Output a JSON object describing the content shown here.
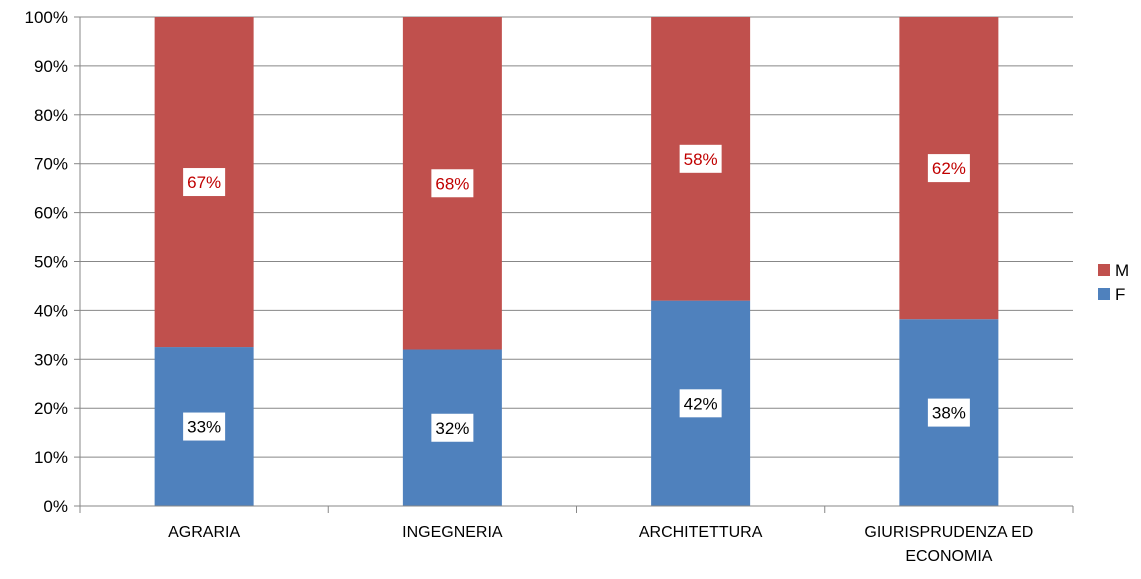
{
  "chart_data": {
    "type": "bar",
    "stacked": true,
    "percent": true,
    "categories": [
      [
        "AGRARIA"
      ],
      [
        "INGEGNERIA"
      ],
      [
        "ARCHITETTURA"
      ],
      [
        "GIURISPRUDENZA ED",
        "ECONOMIA"
      ]
    ],
    "series": [
      {
        "name": "F",
        "color": "#4f81bd",
        "values": [
          32.5,
          32,
          42,
          38.2
        ],
        "labels": [
          "33%",
          "32%",
          "42%",
          "38%"
        ]
      },
      {
        "name": "M",
        "color": "#c0504d",
        "values": [
          67.5,
          68,
          58,
          61.8
        ],
        "labels": [
          "67%",
          "68%",
          "58%",
          "62%"
        ]
      }
    ],
    "title": "",
    "xlabel": "",
    "ylabel": "",
    "ylim": [
      0,
      100
    ],
    "yticks": [
      "0%",
      "10%",
      "20%",
      "30%",
      "40%",
      "50%",
      "60%",
      "70%",
      "80%",
      "90%",
      "100%"
    ],
    "grid": true,
    "legend": {
      "position": "right",
      "order": [
        "M",
        "F"
      ]
    },
    "label_colors": {
      "F": "#000000",
      "M": "#c00000"
    }
  }
}
